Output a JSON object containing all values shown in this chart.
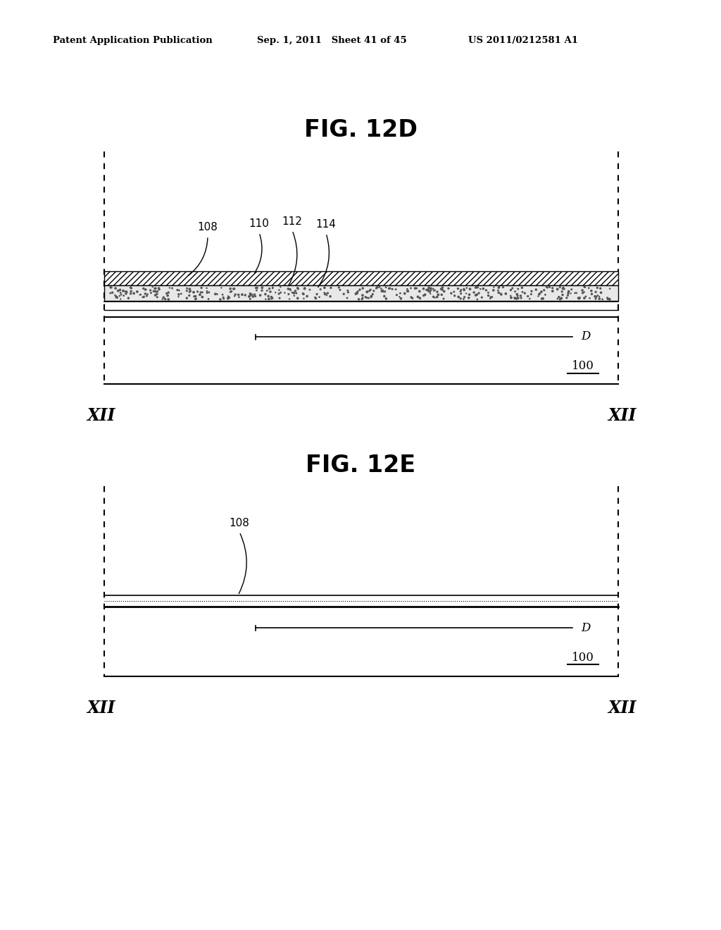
{
  "header_left": "Patent Application Publication",
  "header_mid": "Sep. 1, 2011   Sheet 41 of 45",
  "header_right": "US 2011/0212581 A1",
  "fig1_title": "FIG. 12D",
  "fig2_title": "FIG. 12E",
  "xii_label": "XII",
  "label_100": "100",
  "label_D": "D",
  "bg_color": "#ffffff",
  "line_color": "#000000"
}
